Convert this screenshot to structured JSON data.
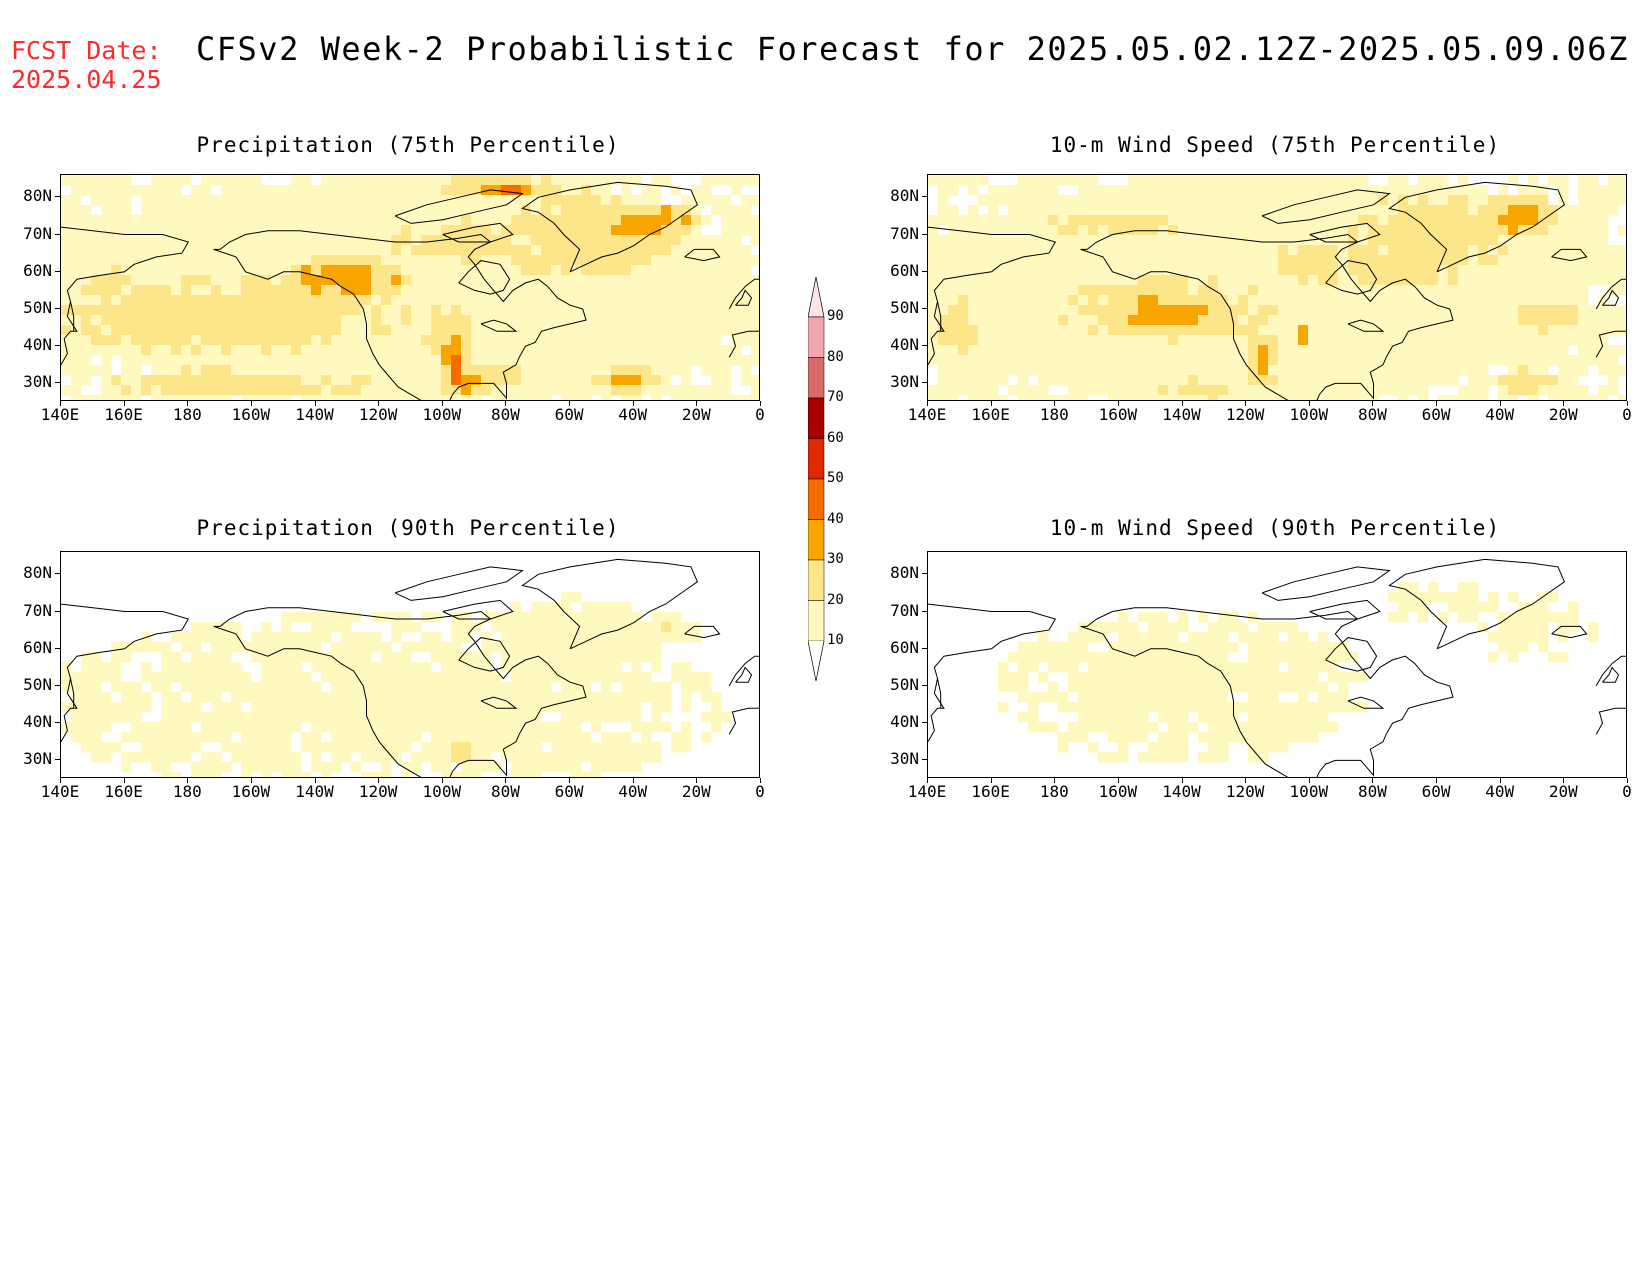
{
  "header": {
    "fcst_label": "FCST Date:",
    "fcst_date": "2025.04.25",
    "title": "CFSv2 Week-2 Probabilistic Forecast for 2025.05.02.12Z-2025.05.09.06Z"
  },
  "panels": [
    {
      "id": "precip-75",
      "title": "Precipitation (75th Percentile)",
      "variable": "precipitation",
      "percentile": 75
    },
    {
      "id": "wind-75",
      "title": "10-m Wind Speed (75th Percentile)",
      "variable": "wind",
      "percentile": 75
    },
    {
      "id": "precip-90",
      "title": "Precipitation (90th Percentile)",
      "variable": "precipitation",
      "percentile": 90
    },
    {
      "id": "wind-90",
      "title": "10-m Wind Speed (90th Percentile)",
      "variable": "wind",
      "percentile": 90
    }
  ],
  "axes": {
    "lat_labels": [
      "80N",
      "70N",
      "60N",
      "50N",
      "40N",
      "30N"
    ],
    "lat_values": [
      80,
      70,
      60,
      50,
      40,
      30
    ],
    "lat_range": [
      25,
      86
    ],
    "lon_labels": [
      "140E",
      "160E",
      "180",
      "160W",
      "140W",
      "120W",
      "100W",
      "80W",
      "60W",
      "40W",
      "20W",
      "0"
    ],
    "lon_values": [
      140,
      160,
      180,
      200,
      220,
      240,
      260,
      280,
      300,
      320,
      340,
      360
    ],
    "lon_range": [
      140,
      360
    ]
  },
  "colorbar": {
    "levels": [
      10,
      20,
      30,
      40,
      50,
      60,
      70,
      80,
      90
    ],
    "labels": [
      "90",
      "80",
      "70",
      "60",
      "50",
      "40",
      "30",
      "20",
      "10"
    ],
    "colors": [
      "#fff9bf",
      "#fde58a",
      "#f8a500",
      "#f36d00",
      "#df2800",
      "#a80000",
      "#d96a6a",
      "#f2a7b0",
      "#fde4e8"
    ]
  }
}
